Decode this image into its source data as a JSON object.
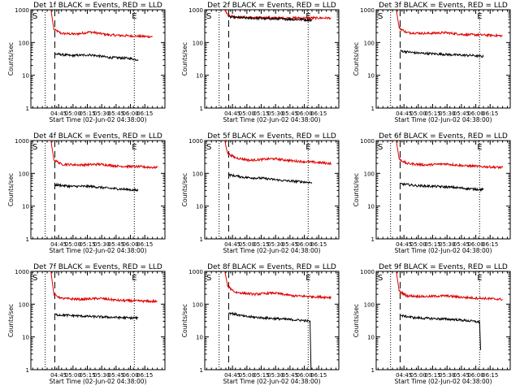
{
  "chart_data": [
    {
      "type": "line",
      "title": "Det 1f BLACK = Events, RED = LLD",
      "xlabel": "Start Time (02-Jun-02 04:38:00)",
      "ylabel": "Counts/sec",
      "y_scale": "log",
      "ylim": [
        1,
        1000
      ],
      "y_ticks": [
        "1",
        "10",
        "100",
        "1000"
      ],
      "x_ticks": [
        "04:45",
        "05:00",
        "05:15",
        "05:30",
        "05:45",
        "06:00",
        "06:15"
      ],
      "x_range_minutes": [
        -22,
        118
      ],
      "start_label": "S",
      "end_label": "E",
      "dotted_lines_minutes": [
        -7,
        86
      ],
      "dashed_line_minutes": 3,
      "series": [
        {
          "name": "LLD",
          "color": "#e00000",
          "points": [
            [
              -1,
              1000
            ],
            [
              2,
              250
            ],
            [
              10,
              190
            ],
            [
              25,
              180
            ],
            [
              40,
              210
            ],
            [
              60,
              170
            ],
            [
              80,
              160
            ],
            [
              105,
              150
            ]
          ]
        },
        {
          "name": "Events",
          "color": "#000000",
          "points": [
            [
              3,
              45
            ],
            [
              20,
              40
            ],
            [
              40,
              42
            ],
            [
              60,
              35
            ],
            [
              80,
              33
            ],
            [
              90,
              30
            ]
          ]
        }
      ]
    },
    {
      "type": "line",
      "title": "Det 2f BLACK = Events, RED = LLD",
      "xlabel": "Start Time (02-Jun-02 04:38:00)",
      "ylabel": "Counts/sec",
      "y_scale": "log",
      "ylim": [
        1,
        1000
      ],
      "y_ticks": [
        "1",
        "10",
        "100",
        "1000"
      ],
      "x_ticks": [
        "04:45",
        "05:00",
        "05:15",
        "05:30",
        "05:45",
        "06:00",
        "06:15"
      ],
      "x_range_minutes": [
        -22,
        118
      ],
      "start_label": "S",
      "end_label": "E",
      "dotted_lines_minutes": [
        -7,
        86
      ],
      "dashed_line_minutes": 3,
      "series": [
        {
          "name": "LLD",
          "color": "#e00000",
          "points": [
            [
              -1,
              1000
            ],
            [
              2,
              700
            ],
            [
              10,
              600
            ],
            [
              30,
              580
            ],
            [
              60,
              560
            ],
            [
              80,
              560
            ],
            [
              110,
              560
            ]
          ]
        },
        {
          "name": "Events",
          "color": "#000000",
          "points": [
            [
              3,
              600
            ],
            [
              20,
              560
            ],
            [
              40,
              540
            ],
            [
              60,
              520
            ],
            [
              80,
              500
            ],
            [
              90,
              480
            ]
          ]
        }
      ]
    },
    {
      "type": "line",
      "title": "Det 3f BLACK = Events, RED = LLD",
      "xlabel": "Start Time (02-Jun-02 04:38:00)",
      "ylabel": "Counts/sec",
      "y_scale": "log",
      "ylim": [
        1,
        1000
      ],
      "y_ticks": [
        "1",
        "10",
        "100",
        "1000"
      ],
      "x_ticks": [
        "04:45",
        "05:00",
        "05:15",
        "05:30",
        "05:45",
        "06:00",
        "06:15"
      ],
      "x_range_minutes": [
        -22,
        118
      ],
      "start_label": "S",
      "end_label": "E",
      "dotted_lines_minutes": [
        -7,
        86
      ],
      "dashed_line_minutes": 3,
      "series": [
        {
          "name": "LLD",
          "color": "#e00000",
          "points": [
            [
              -1,
              1000
            ],
            [
              2,
              280
            ],
            [
              10,
              200
            ],
            [
              30,
              190
            ],
            [
              50,
              200
            ],
            [
              70,
              175
            ],
            [
              90,
              170
            ],
            [
              110,
              160
            ]
          ]
        },
        {
          "name": "Events",
          "color": "#000000",
          "points": [
            [
              3,
              55
            ],
            [
              20,
              48
            ],
            [
              40,
              45
            ],
            [
              60,
              42
            ],
            [
              80,
              40
            ],
            [
              90,
              37
            ]
          ]
        }
      ]
    },
    {
      "type": "line",
      "title": "Det 4f BLACK = Events, RED = LLD",
      "xlabel": "Start Time (02-Jun-02 04:38:00)",
      "ylabel": "Counts/sec",
      "y_scale": "log",
      "ylim": [
        1,
        1000
      ],
      "y_ticks": [
        "1",
        "10",
        "100",
        "1000"
      ],
      "x_ticks": [
        "04:45",
        "05:00",
        "05:15",
        "05:30",
        "05:45",
        "06:00",
        "06:15"
      ],
      "x_range_minutes": [
        -22,
        118
      ],
      "start_label": "S",
      "end_label": "E",
      "dotted_lines_minutes": [
        -7,
        86
      ],
      "dashed_line_minutes": 3,
      "series": [
        {
          "name": "LLD",
          "color": "#e00000",
          "points": [
            [
              -1,
              1000
            ],
            [
              2,
              260
            ],
            [
              10,
              190
            ],
            [
              30,
              180
            ],
            [
              50,
              190
            ],
            [
              70,
              165
            ],
            [
              90,
              160
            ],
            [
              110,
              150
            ]
          ]
        },
        {
          "name": "Events",
          "color": "#000000",
          "points": [
            [
              3,
              45
            ],
            [
              20,
              40
            ],
            [
              40,
              40
            ],
            [
              60,
              35
            ],
            [
              80,
              32
            ],
            [
              90,
              30
            ]
          ]
        }
      ]
    },
    {
      "type": "line",
      "title": "Det 5f BLACK = Events, RED = LLD",
      "xlabel": "Start Time (02-Jun-02 04:38:00)",
      "ylabel": "Counts/sec",
      "y_scale": "log",
      "ylim": [
        1,
        1000
      ],
      "y_ticks": [
        "1",
        "10",
        "100",
        "1000"
      ],
      "x_ticks": [
        "04:45",
        "05:00",
        "05:15",
        "05:30",
        "05:45",
        "06:00",
        "06:15"
      ],
      "x_range_minutes": [
        -22,
        118
      ],
      "start_label": "S",
      "end_label": "E",
      "dotted_lines_minutes": [
        -7,
        86
      ],
      "dashed_line_minutes": 3,
      "series": [
        {
          "name": "LLD",
          "color": "#e00000",
          "points": [
            [
              -1,
              1000
            ],
            [
              2,
              400
            ],
            [
              10,
              300
            ],
            [
              25,
              250
            ],
            [
              50,
              280
            ],
            [
              70,
              240
            ],
            [
              90,
              220
            ],
            [
              110,
              200
            ]
          ]
        },
        {
          "name": "Events",
          "color": "#000000",
          "points": [
            [
              3,
              90
            ],
            [
              20,
              75
            ],
            [
              40,
              70
            ],
            [
              60,
              60
            ],
            [
              80,
              55
            ],
            [
              90,
              52
            ]
          ]
        }
      ]
    },
    {
      "type": "line",
      "title": "Det 6f BLACK = Events, RED = LLD",
      "xlabel": "Start Time (02-Jun-02 04:38:00)",
      "ylabel": "Counts/sec",
      "y_scale": "log",
      "ylim": [
        1,
        1000
      ],
      "y_ticks": [
        "1",
        "10",
        "100",
        "1000"
      ],
      "x_ticks": [
        "04:45",
        "05:00",
        "05:15",
        "05:30",
        "05:45",
        "06:00",
        "06:15"
      ],
      "x_range_minutes": [
        -22,
        118
      ],
      "start_label": "S",
      "end_label": "E",
      "dotted_lines_minutes": [
        -7,
        86
      ],
      "dashed_line_minutes": 3,
      "series": [
        {
          "name": "LLD",
          "color": "#e00000",
          "points": [
            [
              -1,
              1000
            ],
            [
              2,
              270
            ],
            [
              10,
              200
            ],
            [
              30,
              180
            ],
            [
              50,
              195
            ],
            [
              70,
              170
            ],
            [
              90,
              160
            ],
            [
              110,
              150
            ]
          ]
        },
        {
          "name": "Events",
          "color": "#000000",
          "points": [
            [
              3,
              48
            ],
            [
              20,
              42
            ],
            [
              40,
              40
            ],
            [
              60,
              37
            ],
            [
              80,
              33
            ],
            [
              90,
              32
            ]
          ]
        }
      ]
    },
    {
      "type": "line",
      "title": "Det 7f BLACK = Events, RED = LLD",
      "xlabel": "Start Time (02-Jun-02 04:38:00)",
      "ylabel": "Counts/sec",
      "y_scale": "log",
      "ylim": [
        1,
        1000
      ],
      "y_ticks": [
        "1",
        "10",
        "100",
        "1000"
      ],
      "x_ticks": [
        "04:45",
        "05:00",
        "05:15",
        "05:30",
        "05:45",
        "06:00",
        "06:15"
      ],
      "x_range_minutes": [
        -22,
        118
      ],
      "start_label": "S",
      "end_label": "E",
      "dotted_lines_minutes": [
        -7,
        86
      ],
      "dashed_line_minutes": 3,
      "series": [
        {
          "name": "LLD",
          "color": "#e00000",
          "points": [
            [
              -1,
              1000
            ],
            [
              2,
              200
            ],
            [
              10,
              150
            ],
            [
              30,
              140
            ],
            [
              50,
              150
            ],
            [
              70,
              130
            ],
            [
              90,
              125
            ],
            [
              110,
              120
            ]
          ]
        },
        {
          "name": "Events",
          "color": "#000000",
          "points": [
            [
              3,
              48
            ],
            [
              20,
              45
            ],
            [
              40,
              42
            ],
            [
              60,
              40
            ],
            [
              80,
              38
            ],
            [
              90,
              38
            ]
          ]
        }
      ]
    },
    {
      "type": "line",
      "title": "Det 8f BLACK = Events, RED = LLD",
      "xlabel": "Start Time (02-Jun-02 04:38:00)",
      "ylabel": "Counts/sec",
      "y_scale": "log",
      "ylim": [
        1,
        1000
      ],
      "y_ticks": [
        "1",
        "10",
        "100",
        "1000"
      ],
      "x_ticks": [
        "04:45",
        "05:00",
        "05:15",
        "05:30",
        "05:45",
        "06:00",
        "06:15"
      ],
      "x_range_minutes": [
        -22,
        118
      ],
      "start_label": "S",
      "end_label": "E",
      "dotted_lines_minutes": [
        -7,
        86
      ],
      "dashed_line_minutes": 3,
      "series": [
        {
          "name": "LLD",
          "color": "#e00000",
          "points": [
            [
              -1,
              1000
            ],
            [
              2,
              350
            ],
            [
              10,
              230
            ],
            [
              30,
              200
            ],
            [
              50,
              220
            ],
            [
              70,
              180
            ],
            [
              90,
              170
            ],
            [
              110,
              160
            ]
          ]
        },
        {
          "name": "Events",
          "color": "#000000",
          "points": [
            [
              3,
              55
            ],
            [
              20,
              42
            ],
            [
              40,
              38
            ],
            [
              60,
              35
            ],
            [
              80,
              32
            ],
            [
              88,
              30
            ],
            [
              89,
              1
            ]
          ]
        }
      ]
    },
    {
      "type": "line",
      "title": "Det 9f BLACK = Events, RED = LLD",
      "xlabel": "Start Time (02-Jun-02 04:38:00)",
      "ylabel": "Counts/sec",
      "y_scale": "log",
      "ylim": [
        1,
        1000
      ],
      "y_ticks": [
        "1",
        "10",
        "100",
        "1000"
      ],
      "x_ticks": [
        "04:45",
        "05:00",
        "05:15",
        "05:30",
        "05:45",
        "06:00",
        "06:15"
      ],
      "x_range_minutes": [
        -22,
        118
      ],
      "start_label": "S",
      "end_label": "E",
      "dotted_lines_minutes": [
        -7,
        86
      ],
      "dashed_line_minutes": 3,
      "series": [
        {
          "name": "LLD",
          "color": "#e00000",
          "points": [
            [
              -1,
              1000
            ],
            [
              2,
              250
            ],
            [
              10,
              180
            ],
            [
              30,
              170
            ],
            [
              50,
              180
            ],
            [
              70,
              160
            ],
            [
              90,
              150
            ],
            [
              110,
              140
            ]
          ]
        },
        {
          "name": "Events",
          "color": "#000000",
          "points": [
            [
              3,
              45
            ],
            [
              20,
              38
            ],
            [
              40,
              36
            ],
            [
              60,
              34
            ],
            [
              80,
              30
            ],
            [
              86,
              28
            ],
            [
              87,
              4
            ]
          ]
        }
      ]
    }
  ]
}
